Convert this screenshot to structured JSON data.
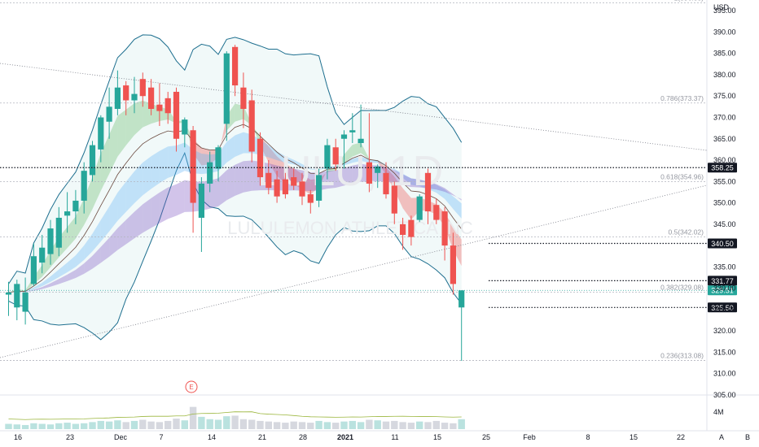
{
  "chart_data": {
    "type": "candlestick",
    "currency": "USD",
    "ylim": [
      305,
      397.5
    ],
    "y_ticks": [
      395,
      390,
      385,
      380,
      375,
      370,
      365,
      360,
      355,
      350,
      345,
      335,
      330,
      325,
      320,
      315,
      310,
      305
    ],
    "volume_tick": "4M",
    "x_labels": [
      "16",
      "23",
      "Dec",
      "7",
      "14",
      "21",
      "28",
      "2021",
      "11",
      "15",
      "25",
      "Feb",
      "8",
      "15",
      "22"
    ],
    "watermark_ticker": "LULU, 1D",
    "watermark_name": "LULULEMON ATHLETICA INC",
    "candles": [
      {
        "o": 328.5,
        "h": 331.5,
        "l": 323.5,
        "c": 329.0
      },
      {
        "o": 325.5,
        "h": 332.0,
        "l": 322.5,
        "c": 331.0
      },
      {
        "o": 324.5,
        "h": 332.5,
        "l": 321.5,
        "c": 329.0
      },
      {
        "o": 331.0,
        "h": 340.5,
        "l": 330.5,
        "c": 337.5
      },
      {
        "o": 336.0,
        "h": 342.5,
        "l": 333.5,
        "c": 339.5
      },
      {
        "o": 338.0,
        "h": 346.0,
        "l": 335.5,
        "c": 344.0
      },
      {
        "o": 339.5,
        "h": 349.0,
        "l": 337.5,
        "c": 346.5
      },
      {
        "o": 347.0,
        "h": 352.5,
        "l": 343.0,
        "c": 348.0
      },
      {
        "o": 348.0,
        "h": 353.0,
        "l": 345.0,
        "c": 350.5
      },
      {
        "o": 350.5,
        "h": 359.5,
        "l": 347.5,
        "c": 357.5
      },
      {
        "o": 356.5,
        "h": 364.5,
        "l": 355.0,
        "c": 363.5
      },
      {
        "o": 362.5,
        "h": 370.5,
        "l": 359.5,
        "c": 370.0
      },
      {
        "o": 369.0,
        "h": 377.0,
        "l": 365.0,
        "c": 372.5
      },
      {
        "o": 372.0,
        "h": 381.0,
        "l": 370.5,
        "c": 377.0
      },
      {
        "o": 377.5,
        "h": 378.5,
        "l": 370.5,
        "c": 374.0
      },
      {
        "o": 374.0,
        "h": 379.5,
        "l": 371.0,
        "c": 375.5
      },
      {
        "o": 379.0,
        "h": 380.5,
        "l": 372.5,
        "c": 375.0
      },
      {
        "o": 377.0,
        "h": 379.0,
        "l": 370.5,
        "c": 372.0
      },
      {
        "o": 373.0,
        "h": 378.0,
        "l": 368.0,
        "c": 371.5
      },
      {
        "o": 374.5,
        "h": 376.0,
        "l": 368.5,
        "c": 371.0
      },
      {
        "o": 376.0,
        "h": 377.0,
        "l": 362.0,
        "c": 365.0
      },
      {
        "o": 366.0,
        "h": 370.0,
        "l": 363.0,
        "c": 369.5
      },
      {
        "o": 367.0,
        "h": 368.0,
        "l": 343.0,
        "c": 350.0
      },
      {
        "o": 346.5,
        "h": 356.0,
        "l": 338.5,
        "c": 354.5
      },
      {
        "o": 354.5,
        "h": 362.0,
        "l": 352.5,
        "c": 359.5
      },
      {
        "o": 358.0,
        "h": 363.5,
        "l": 355.0,
        "c": 363.0
      },
      {
        "o": 368.5,
        "h": 385.5,
        "l": 364.5,
        "c": 385.0
      },
      {
        "o": 386.5,
        "h": 387.0,
        "l": 375.0,
        "c": 377.5
      },
      {
        "o": 377.0,
        "h": 380.5,
        "l": 367.5,
        "c": 372.0
      },
      {
        "o": 374.0,
        "h": 376.5,
        "l": 359.5,
        "c": 362.0
      },
      {
        "o": 365.0,
        "h": 366.5,
        "l": 354.0,
        "c": 356.0
      },
      {
        "o": 357.0,
        "h": 360.0,
        "l": 352.0,
        "c": 353.5
      },
      {
        "o": 355.5,
        "h": 357.5,
        "l": 350.0,
        "c": 351.5
      },
      {
        "o": 355.5,
        "h": 357.0,
        "l": 351.0,
        "c": 352.0
      },
      {
        "o": 356.0,
        "h": 358.0,
        "l": 353.0,
        "c": 354.0
      },
      {
        "o": 355.0,
        "h": 357.0,
        "l": 349.5,
        "c": 351.5
      },
      {
        "o": 352.0,
        "h": 353.0,
        "l": 347.5,
        "c": 350.0
      },
      {
        "o": 350.5,
        "h": 358.0,
        "l": 349.0,
        "c": 356.5
      },
      {
        "o": 358.0,
        "h": 365.0,
        "l": 355.5,
        "c": 363.5
      },
      {
        "o": 363.0,
        "h": 365.0,
        "l": 357.5,
        "c": 359.0
      },
      {
        "o": 365.0,
        "h": 367.0,
        "l": 358.0,
        "c": 366.0
      },
      {
        "o": 366.5,
        "h": 371.0,
        "l": 364.0,
        "c": 367.0
      },
      {
        "o": 364.0,
        "h": 373.0,
        "l": 363.0,
        "c": 365.0
      },
      {
        "o": 359.5,
        "h": 371.0,
        "l": 352.5,
        "c": 354.5
      },
      {
        "o": 357.0,
        "h": 359.0,
        "l": 353.5,
        "c": 358.5
      },
      {
        "o": 357.0,
        "h": 359.5,
        "l": 351.0,
        "c": 352.0
      },
      {
        "o": 354.0,
        "h": 355.0,
        "l": 345.0,
        "c": 347.5
      },
      {
        "o": 345.0,
        "h": 346.5,
        "l": 339.0,
        "c": 342.5
      },
      {
        "o": 346.0,
        "h": 347.0,
        "l": 340.0,
        "c": 342.0
      },
      {
        "o": 346.0,
        "h": 352.0,
        "l": 345.5,
        "c": 351.5
      },
      {
        "o": 357.0,
        "h": 358.0,
        "l": 345.0,
        "c": 348.0
      },
      {
        "o": 349.5,
        "h": 351.0,
        "l": 345.0,
        "c": 346.0
      },
      {
        "o": 348.0,
        "h": 349.0,
        "l": 336.5,
        "c": 340.0
      },
      {
        "o": 340.0,
        "h": 343.0,
        "l": 328.5,
        "c": 331.0
      },
      {
        "o": 325.5,
        "h": 329.5,
        "l": 313.0,
        "c": 329.5
      }
    ],
    "volume": [
      3.1,
      3.0,
      2.9,
      3.2,
      3.1,
      3.0,
      3.2,
      3.3,
      3.1,
      3.2,
      3.4,
      3.6,
      3.5,
      3.7,
      3.4,
      3.6,
      3.8,
      3.5,
      3.4,
      3.6,
      4.0,
      3.7,
      6.0,
      4.3,
      3.9,
      3.8,
      4.4,
      4.5,
      3.9,
      3.8,
      3.6,
      3.5,
      3.4,
      3.3,
      3.5,
      3.4,
      3.3,
      3.6,
      3.4,
      3.3,
      3.5,
      3.6,
      3.4,
      3.8,
      3.7,
      3.5,
      3.6,
      3.4,
      3.3,
      3.5,
      3.4,
      3.6,
      3.3,
      3.2,
      3.9
    ],
    "fib_levels": [
      {
        "label": "1(396.83)",
        "value": 396.83
      },
      {
        "label": "0.786(373.37)",
        "value": 373.37
      },
      {
        "label": "0.618(354.96)",
        "value": 354.96
      },
      {
        "label": "0.5(342.02)",
        "value": 342.02
      },
      {
        "label": "0.382(329.08)",
        "value": 329.08
      },
      {
        "label": "0.236(313.08)",
        "value": 313.08
      }
    ],
    "horizontal_levels": [
      {
        "label": "358.25",
        "value": 358.25,
        "color": "#131722"
      },
      {
        "label": "340.50",
        "value": 340.5,
        "color": "#131722"
      },
      {
        "label": "331.77",
        "value": 331.77,
        "color": "#131722"
      },
      {
        "label": "325.50",
        "value": 325.5,
        "color": "#131722"
      }
    ],
    "last_price": {
      "label": "329.51",
      "value": 329.51,
      "color": "#26a69a"
    },
    "earnings_marker": "E"
  },
  "bottom_buttons": {
    "auto": "A",
    "log": "B"
  }
}
